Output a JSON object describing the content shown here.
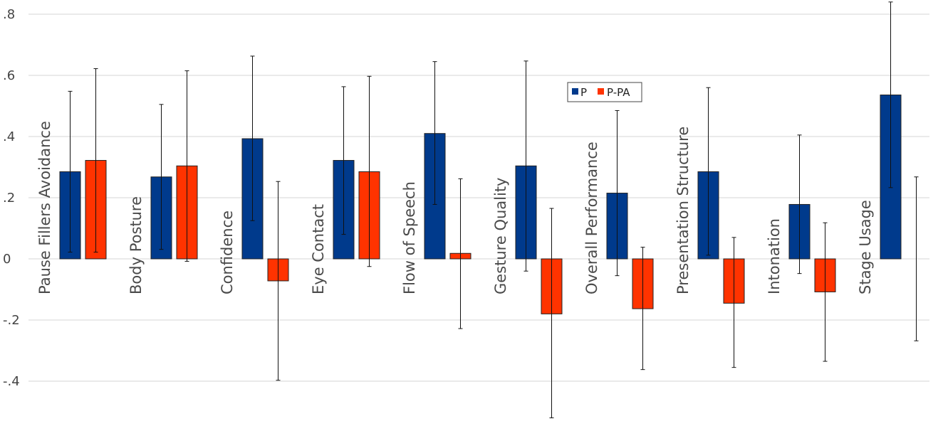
{
  "chart_data": {
    "type": "bar",
    "categories": [
      "Pause Fillers Avoidance",
      "Body Posture",
      "Confidence",
      "Eye Contact",
      "Flow of Speech",
      "Gesture Quality",
      "Overall Performance",
      "Presentation Structure",
      "Intonation",
      "Stage Usage"
    ],
    "series": [
      {
        "name": "P",
        "color": "#003a8c",
        "values": [
          0.285,
          0.268,
          0.393,
          0.322,
          0.41,
          0.304,
          0.215,
          0.285,
          0.178,
          0.536
        ],
        "err_low": [
          0.022,
          0.031,
          0.125,
          0.08,
          0.178,
          -0.04,
          -0.055,
          0.012,
          -0.048,
          0.233
        ],
        "err_high": [
          0.548,
          0.505,
          0.663,
          0.563,
          0.645,
          0.647,
          0.485,
          0.56,
          0.405,
          0.84
        ]
      },
      {
        "name": "P-PA",
        "color": "#ff3300",
        "values": [
          0.322,
          0.304,
          -0.072,
          0.285,
          0.018,
          -0.18,
          -0.163,
          -0.145,
          -0.108,
          0.0
        ],
        "err_low": [
          0.022,
          -0.008,
          -0.397,
          -0.025,
          -0.228,
          -0.52,
          -0.362,
          -0.355,
          -0.335,
          -0.268
        ],
        "err_high": [
          0.622,
          0.615,
          0.253,
          0.597,
          0.262,
          0.165,
          0.038,
          0.07,
          0.118,
          0.268
        ]
      }
    ],
    "yticks": [
      -0.4,
      -0.2,
      0,
      0.2,
      0.4,
      0.6,
      0.8
    ],
    "ytick_labels": [
      "-.4",
      "-.2",
      "0",
      ".2",
      ".4",
      ".6",
      ".8"
    ],
    "ylim": [
      -0.53,
      0.85
    ],
    "grid": true,
    "legend_position": "top-center"
  }
}
